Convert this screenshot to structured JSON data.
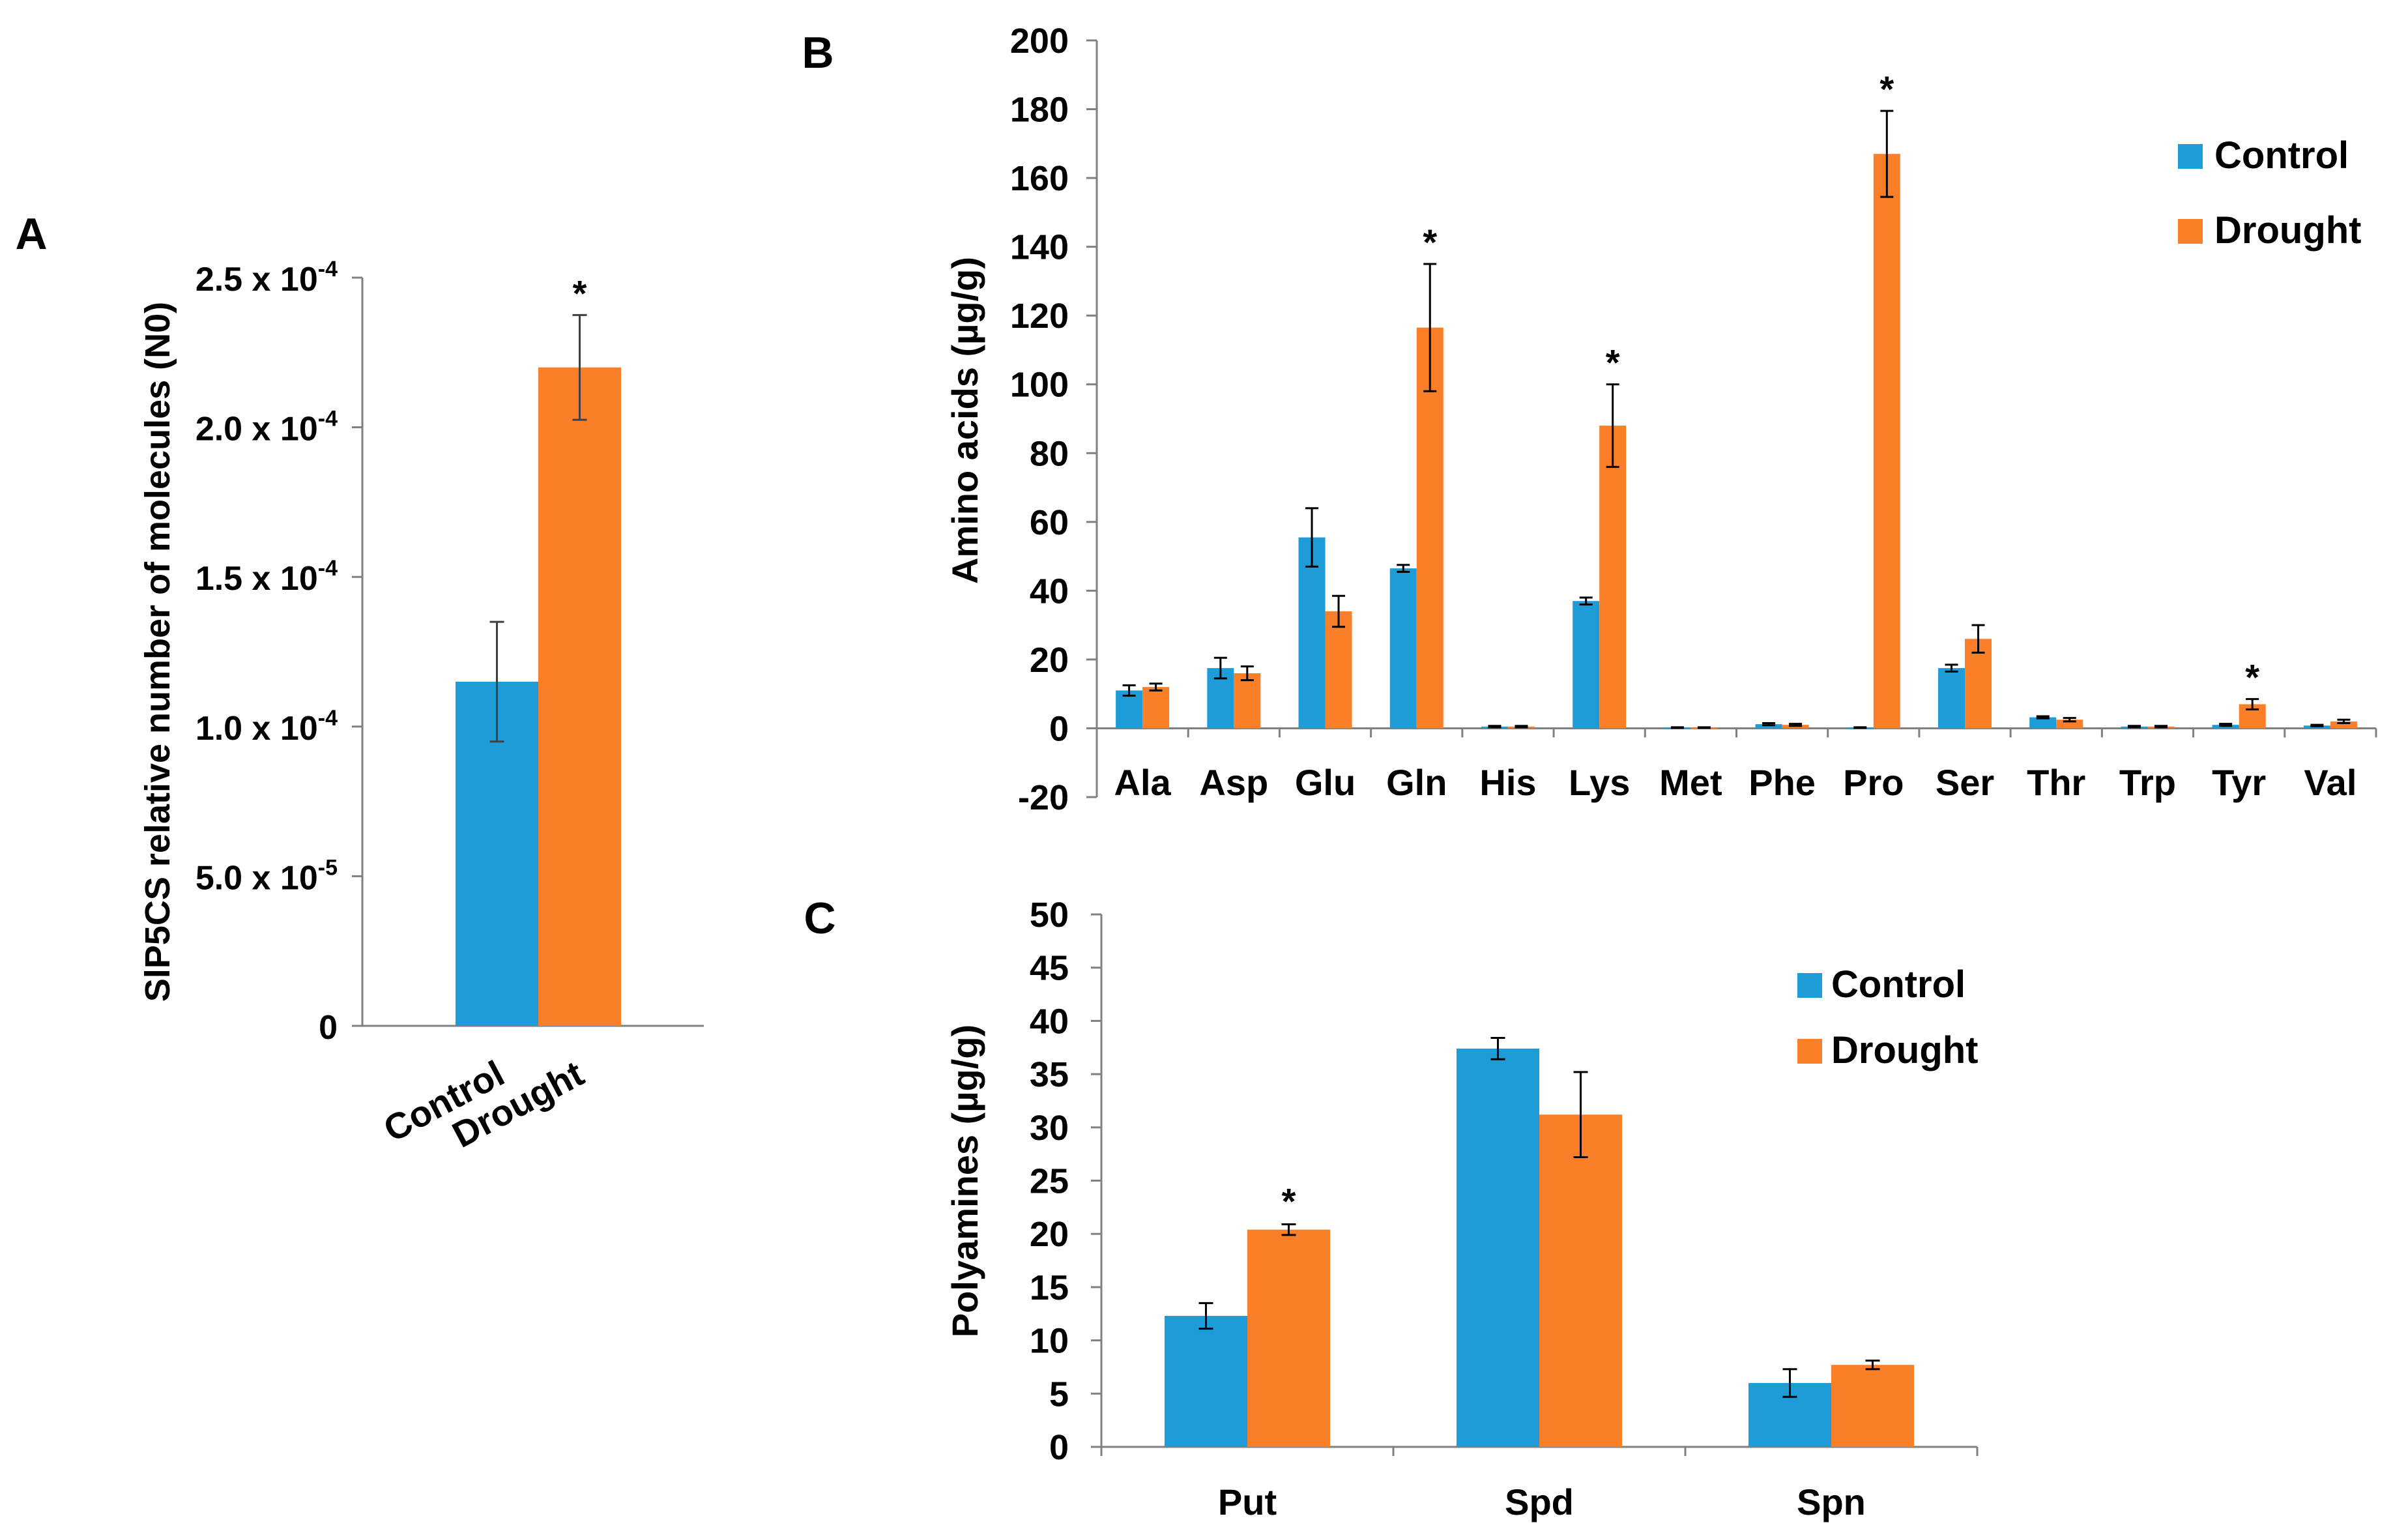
{
  "colors": {
    "control": "#1e9cd8",
    "drought": "#fb7f29"
  },
  "chart_data": [
    {
      "panel": "A",
      "type": "bar",
      "panel_label": "A",
      "title": "",
      "ylabel": "SlP5CS relative number of molecules (N0)",
      "xlabel": "",
      "ylim": [
        0,
        0.00025
      ],
      "yticks": [
        {
          "value": 0,
          "mantissa": "0",
          "exponent": ""
        },
        {
          "value": 5e-05,
          "mantissa": "5.0 x 10",
          "exponent": "-5"
        },
        {
          "value": 0.0001,
          "mantissa": "1.0 x 10",
          "exponent": "-4"
        },
        {
          "value": 0.00015,
          "mantissa": "1.5 x 10",
          "exponent": "-4"
        },
        {
          "value": 0.0002,
          "mantissa": "2.0 x 10",
          "exponent": "-4"
        },
        {
          "value": 0.00025,
          "mantissa": "2.5 x 10",
          "exponent": "-4"
        }
      ],
      "categories": [
        "Control",
        "Drought"
      ],
      "values": [
        0.000115,
        0.00022
      ],
      "errors": [
        2e-05,
        1.75e-05
      ],
      "significance": [
        "",
        "*"
      ]
    },
    {
      "panel": "B",
      "type": "bar",
      "panel_label": "B",
      "title": "",
      "ylabel": "Amino acids (µg/g)",
      "xlabel": "",
      "ylim": [
        -20,
        200
      ],
      "yticks": [
        -20,
        0,
        20,
        40,
        60,
        80,
        100,
        120,
        140,
        160,
        180,
        200
      ],
      "legend": [
        "Control",
        "Drought"
      ],
      "legend_position": "top-right",
      "categories": [
        "Ala",
        "Asp",
        "Glu",
        "Gln",
        "His",
        "Lys",
        "Met",
        "Phe",
        "Pro",
        "Ser",
        "Thr",
        "Trp",
        "Tyr",
        "Val"
      ],
      "series": [
        {
          "name": "Control",
          "values": [
            11,
            17.5,
            55.5,
            46.5,
            0.5,
            37,
            0.2,
            1.2,
            0.2,
            17.5,
            3.2,
            0.5,
            1,
            0.8
          ],
          "errors": [
            1.5,
            3,
            8.5,
            1,
            0.2,
            1,
            0.1,
            0.3,
            0.1,
            1,
            0.3,
            0.2,
            0.3,
            0.2
          ]
        },
        {
          "name": "Drought",
          "values": [
            12,
            16,
            34,
            116.5,
            0.5,
            88,
            0.2,
            1,
            167,
            26,
            2.5,
            0.5,
            7,
            2
          ],
          "errors": [
            1,
            2,
            4.5,
            18.5,
            0.2,
            12,
            0.1,
            0.3,
            12.5,
            4,
            0.5,
            0.2,
            1.5,
            0.5
          ]
        }
      ],
      "significance": [
        "",
        "",
        "",
        "*",
        "",
        "*",
        "",
        "",
        "*",
        "",
        "",
        "",
        "*",
        ""
      ]
    },
    {
      "panel": "C",
      "type": "bar",
      "panel_label": "C",
      "title": "",
      "ylabel": "Polyamines  (µg/g)",
      "xlabel": "",
      "ylim": [
        0,
        50
      ],
      "yticks": [
        0,
        5,
        10,
        15,
        20,
        25,
        30,
        35,
        40,
        45,
        50
      ],
      "legend": [
        "Control",
        "Drought"
      ],
      "legend_position": "top-right",
      "categories": [
        "Put",
        "Spd",
        "Spn"
      ],
      "series": [
        {
          "name": "Control",
          "values": [
            12.3,
            37.4,
            6
          ],
          "errors": [
            1.2,
            1,
            1.3
          ]
        },
        {
          "name": "Drought",
          "values": [
            20.4,
            31.2,
            7.7
          ],
          "errors": [
            0.5,
            4,
            0.4
          ]
        }
      ],
      "significance": [
        "*",
        "",
        ""
      ]
    }
  ]
}
